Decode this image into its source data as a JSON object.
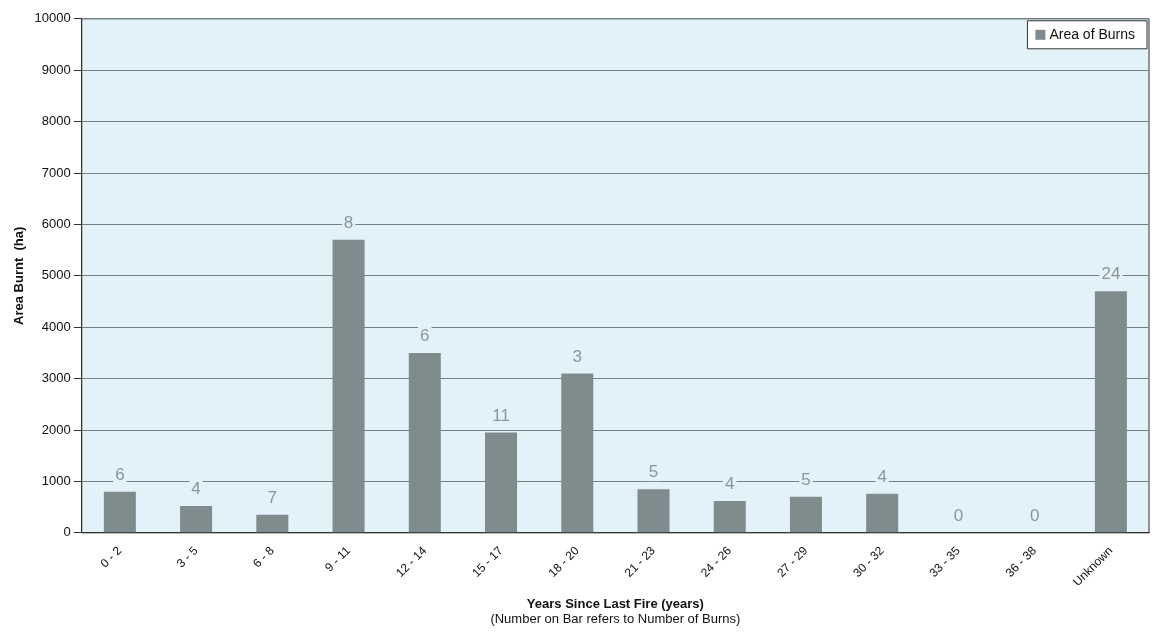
{
  "chart_data": {
    "type": "bar",
    "xlabel": "Years Since Last Fire (years)",
    "ylabel": "Area Burnt  (ha)",
    "categories": [
      "0 - 2",
      "3 - 5",
      "6 - 8",
      "9 - 11",
      "12 - 14",
      "15 - 17",
      "18 - 20",
      "21 - 23",
      "24 - 26",
      "27 - 29",
      "30 - 32",
      "33 - 35",
      "36 - 38",
      "Unknown"
    ],
    "series": [
      {
        "name": "Area of Burns",
        "color": "#7f8c8e",
        "values": [
          800,
          520,
          350,
          5700,
          3500,
          1950,
          3100,
          850,
          620,
          700,
          760,
          0,
          0,
          4700
        ]
      }
    ],
    "ylim": [
      0,
      10000
    ],
    "yticks": [
      0,
      1000,
      2000,
      3000,
      4000,
      5000,
      6000,
      7000,
      8000,
      9000,
      10000
    ],
    "grid": "y",
    "legend": "top right",
    "annotations": [
      {
        "text": "6",
        "x": "0 - 2",
        "y": 800
      },
      {
        "text": "4",
        "x": "3 - 5",
        "y": 520
      },
      {
        "text": "7",
        "x": "6 - 8",
        "y": 350
      },
      {
        "text": "8",
        "x": "9 - 11",
        "y": 5700
      },
      {
        "text": "6",
        "x": "12 - 14",
        "y": 3500
      },
      {
        "text": "11",
        "x": "15 - 17",
        "y": 1950
      },
      {
        "text": "3",
        "x": "18 - 20",
        "y": 3100
      },
      {
        "text": "5",
        "x": "21 - 23",
        "y": 850
      },
      {
        "text": "4",
        "x": "24 - 26",
        "y": 620
      },
      {
        "text": "5",
        "x": "27 - 29",
        "y": 700
      },
      {
        "text": "4",
        "x": "30 - 32",
        "y": 760
      },
      {
        "text": "0",
        "x": "33 - 35",
        "y": 0
      },
      {
        "text": "0",
        "x": "36 - 38",
        "y": 0
      },
      {
        "text": "24",
        "x": "Unknown",
        "y": 4700
      },
      "(Number on Bar refers to Number of Burns)"
    ]
  }
}
